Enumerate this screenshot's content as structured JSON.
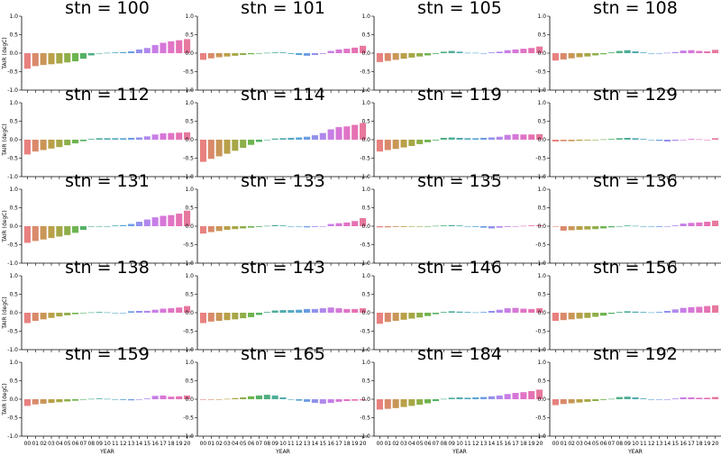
{
  "figure": {
    "facet_label_prefix": "stn = ",
    "xlabel": "YEAR",
    "ylabel": "TAIR (degC)"
  },
  "chart_data": {
    "type": "bar",
    "facet_by": "stn",
    "categories": [
      "00",
      "01",
      "02",
      "03",
      "04",
      "05",
      "06",
      "07",
      "08",
      "09",
      "10",
      "11",
      "12",
      "13",
      "14",
      "15",
      "16",
      "17",
      "18",
      "19",
      "20"
    ],
    "ylim": [
      -1.0,
      1.0
    ],
    "yticks": [
      -1.0,
      -0.5,
      0.0,
      0.5,
      1.0
    ],
    "grid": false,
    "bar_colors": [
      "#e8817f",
      "#d98a6a",
      "#c99657",
      "#b9a049",
      "#a6a746",
      "#8eae4a",
      "#6eb44f",
      "#55b065",
      "#4eaf82",
      "#4ead99",
      "#50aaad",
      "#53a8bf",
      "#58a4d3",
      "#6d9ce3",
      "#9291ec",
      "#b088ec",
      "#c77ee6",
      "#d677d8",
      "#e074c6",
      "#e572b3",
      "#e7789d"
    ],
    "panels": [
      {
        "stn": "100",
        "values": [
          -0.42,
          -0.35,
          -0.32,
          -0.3,
          -0.28,
          -0.25,
          -0.22,
          -0.15,
          -0.06,
          0.0,
          0.01,
          0.02,
          0.03,
          0.05,
          0.1,
          0.14,
          0.22,
          0.28,
          0.32,
          0.35,
          0.38
        ]
      },
      {
        "stn": "101",
        "values": [
          -0.18,
          -0.14,
          -0.11,
          -0.09,
          -0.07,
          -0.05,
          -0.03,
          -0.01,
          0.01,
          0.02,
          0.02,
          -0.02,
          -0.05,
          -0.07,
          -0.05,
          -0.02,
          0.06,
          0.1,
          0.12,
          0.15,
          0.2
        ]
      },
      {
        "stn": "105",
        "values": [
          -0.24,
          -0.21,
          -0.18,
          -0.15,
          -0.12,
          -0.09,
          -0.06,
          -0.02,
          0.04,
          0.06,
          0.04,
          0.01,
          0.01,
          0.0,
          0.02,
          0.04,
          0.08,
          0.1,
          0.12,
          0.14,
          0.18
        ]
      },
      {
        "stn": "108",
        "values": [
          -0.2,
          -0.17,
          -0.14,
          -0.11,
          -0.09,
          -0.06,
          -0.03,
          0.02,
          0.06,
          0.08,
          0.05,
          0.02,
          0.0,
          -0.01,
          0.01,
          0.03,
          0.07,
          0.08,
          0.06,
          0.05,
          0.09
        ]
      },
      {
        "stn": "112",
        "values": [
          -0.4,
          -0.32,
          -0.28,
          -0.24,
          -0.2,
          -0.15,
          -0.1,
          -0.04,
          0.02,
          0.04,
          0.04,
          0.04,
          0.04,
          0.05,
          0.06,
          0.09,
          0.14,
          0.17,
          0.18,
          0.19,
          0.2
        ]
      },
      {
        "stn": "114",
        "values": [
          -0.6,
          -0.52,
          -0.45,
          -0.38,
          -0.3,
          -0.22,
          -0.14,
          -0.06,
          0.0,
          0.03,
          0.04,
          0.05,
          0.06,
          0.08,
          0.12,
          0.18,
          0.28,
          0.34,
          0.36,
          0.4,
          0.45
        ]
      },
      {
        "stn": "119",
        "values": [
          -0.32,
          -0.28,
          -0.25,
          -0.21,
          -0.17,
          -0.12,
          -0.07,
          -0.02,
          0.05,
          0.06,
          0.05,
          0.04,
          0.04,
          0.05,
          0.06,
          0.08,
          0.13,
          0.15,
          0.14,
          0.14,
          0.15
        ]
      },
      {
        "stn": "129",
        "values": [
          -0.05,
          -0.04,
          -0.04,
          -0.03,
          -0.02,
          -0.01,
          0.01,
          0.02,
          0.04,
          0.05,
          0.04,
          0.02,
          -0.01,
          -0.03,
          -0.05,
          -0.03,
          0.0,
          0.02,
          0.01,
          0.0,
          0.04
        ]
      },
      {
        "stn": "131",
        "values": [
          -0.45,
          -0.4,
          -0.36,
          -0.32,
          -0.28,
          -0.24,
          -0.18,
          -0.1,
          0.0,
          0.0,
          0.0,
          0.02,
          0.03,
          0.06,
          0.12,
          0.18,
          0.24,
          0.28,
          0.3,
          0.34,
          0.42
        ]
      },
      {
        "stn": "133",
        "values": [
          -0.2,
          -0.16,
          -0.13,
          -0.1,
          -0.08,
          -0.06,
          -0.04,
          -0.02,
          0.01,
          0.03,
          0.02,
          0.0,
          -0.01,
          -0.03,
          -0.02,
          0.0,
          0.06,
          0.08,
          0.1,
          0.14,
          0.22
        ]
      },
      {
        "stn": "135",
        "values": [
          -0.03,
          -0.03,
          -0.02,
          -0.02,
          -0.01,
          -0.01,
          0.0,
          0.01,
          0.02,
          0.03,
          0.02,
          0.0,
          -0.02,
          -0.04,
          -0.06,
          -0.04,
          -0.02,
          0.0,
          0.01,
          0.02,
          0.03
        ]
      },
      {
        "stn": "136",
        "values": [
          0.0,
          -0.12,
          -0.11,
          -0.1,
          -0.09,
          -0.08,
          -0.06,
          -0.03,
          0.0,
          0.02,
          0.01,
          0.0,
          -0.01,
          -0.02,
          -0.01,
          0.02,
          0.07,
          0.09,
          0.1,
          0.12,
          0.15
        ]
      },
      {
        "stn": "138",
        "values": [
          -0.28,
          -0.22,
          -0.18,
          -0.14,
          -0.1,
          -0.07,
          -0.04,
          -0.01,
          0.01,
          0.02,
          0.01,
          0.0,
          0.0,
          0.04,
          0.05,
          0.05,
          0.08,
          0.11,
          0.12,
          0.14,
          0.18
        ]
      },
      {
        "stn": "143",
        "values": [
          -0.28,
          -0.24,
          -0.22,
          -0.2,
          -0.18,
          -0.15,
          -0.12,
          -0.06,
          0.02,
          0.06,
          0.07,
          0.07,
          0.08,
          0.1,
          0.1,
          0.12,
          0.14,
          0.12,
          0.1,
          0.1,
          0.12
        ]
      },
      {
        "stn": "146",
        "values": [
          -0.3,
          -0.25,
          -0.22,
          -0.19,
          -0.16,
          -0.13,
          -0.09,
          -0.04,
          0.02,
          0.04,
          0.03,
          0.02,
          0.01,
          0.02,
          0.05,
          0.08,
          0.12,
          0.13,
          0.11,
          0.1,
          0.12
        ]
      },
      {
        "stn": "156",
        "values": [
          -0.22,
          -0.2,
          -0.18,
          -0.16,
          -0.14,
          -0.11,
          -0.08,
          -0.03,
          0.02,
          0.04,
          0.03,
          0.02,
          0.01,
          0.02,
          0.05,
          0.09,
          0.13,
          0.15,
          0.16,
          0.18,
          0.2
        ]
      },
      {
        "stn": "159",
        "values": [
          -0.18,
          -0.14,
          -0.12,
          -0.1,
          -0.08,
          -0.06,
          -0.04,
          -0.01,
          0.01,
          0.02,
          0.01,
          0.0,
          -0.02,
          -0.03,
          -0.01,
          0.02,
          0.09,
          0.1,
          0.07,
          0.08,
          0.1
        ]
      },
      {
        "stn": "165",
        "values": [
          0.0,
          -0.01,
          0.0,
          0.01,
          0.03,
          0.05,
          0.08,
          0.1,
          0.12,
          0.1,
          0.05,
          0.0,
          -0.04,
          -0.07,
          -0.1,
          -0.12,
          -0.1,
          -0.07,
          -0.05,
          -0.04,
          -0.03
        ]
      },
      {
        "stn": "184",
        "values": [
          -0.28,
          -0.26,
          -0.24,
          -0.21,
          -0.18,
          -0.15,
          -0.11,
          -0.05,
          0.01,
          0.04,
          0.05,
          0.04,
          0.05,
          0.06,
          0.08,
          0.1,
          0.14,
          0.17,
          0.19,
          0.22,
          0.26
        ]
      },
      {
        "stn": "192",
        "values": [
          -0.16,
          -0.13,
          -0.11,
          -0.09,
          -0.07,
          -0.05,
          -0.02,
          0.01,
          0.06,
          0.07,
          0.05,
          0.02,
          0.0,
          -0.01,
          0.0,
          0.02,
          0.05,
          0.05,
          0.04,
          0.04,
          0.06
        ]
      }
    ]
  }
}
